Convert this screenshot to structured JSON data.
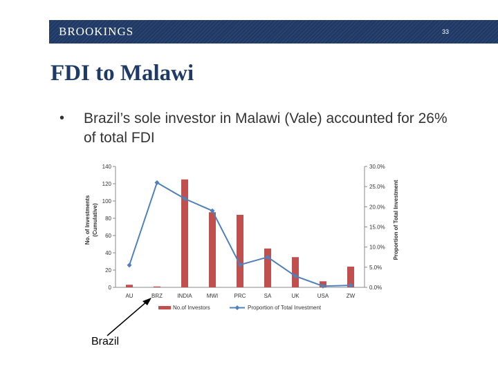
{
  "header": {
    "brand": "BROOKINGS",
    "page_number": "33"
  },
  "slide": {
    "title": "FDI to Malawi",
    "bullet": "Brazil’s sole investor in Malawi (Vale) accounted for 26% of total FDI",
    "annotation": "Brazil"
  },
  "colors": {
    "banner": "#1f3a66",
    "bar": "#c0504d",
    "line": "#4f81bd",
    "title": "#1f3a66"
  },
  "chart_data": {
    "type": "bar",
    "categories": [
      "AU",
      "BRZ",
      "INDIA",
      "MWI",
      "PRC",
      "SA",
      "UK",
      "USA",
      "ZW"
    ],
    "series": [
      {
        "name": "No.of Investors",
        "type": "bar",
        "axis": "left",
        "values": [
          3,
          1,
          125,
          87,
          84,
          45,
          35,
          7,
          24
        ]
      },
      {
        "name": "Proportion of Total Investment",
        "type": "line",
        "axis": "right",
        "values": [
          5.5,
          26.0,
          22.0,
          19.0,
          5.6,
          7.5,
          2.8,
          0.3,
          0.5
        ]
      }
    ],
    "ylabel": "No. of Investments (Cumulative)",
    "ylabel_right": "Proportion of Total Investment",
    "ylim": [
      0,
      140
    ],
    "y_ticks": [
      "0",
      "20",
      "40",
      "60",
      "80",
      "100",
      "120",
      "140"
    ],
    "ylim_right": [
      0,
      30
    ],
    "y_ticks_right": [
      "0.0%",
      "5.0%",
      "10.0%",
      "15.0%",
      "20.0%",
      "25.0%",
      "30.0%"
    ],
    "legend": "bottom",
    "grid": false
  }
}
